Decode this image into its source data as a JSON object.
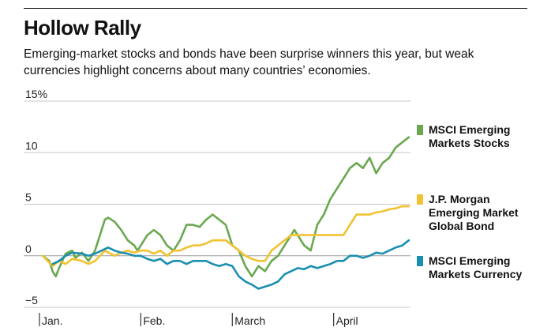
{
  "title": "Hollow Rally",
  "subtitle": "Emerging-market stocks and bonds have been surprise winners this year, but weak currencies highlight concerns about many countries’ economies.",
  "chart_data": {
    "type": "line",
    "title": "Hollow Rally",
    "xlabel": "",
    "ylabel": "",
    "ylim": [
      -5,
      15
    ],
    "y_ticks": [
      {
        "value": 15,
        "label": "15%"
      },
      {
        "value": 10,
        "label": "10"
      },
      {
        "value": 5,
        "label": "5"
      },
      {
        "value": 0,
        "label": "0"
      },
      {
        "value": -5,
        "label": "−5"
      }
    ],
    "x_range": [
      0,
      114
    ],
    "x_ticks": [
      {
        "value": 0,
        "label": "Jan."
      },
      {
        "value": 31,
        "label": "Feb."
      },
      {
        "value": 59,
        "label": "March"
      },
      {
        "value": 90,
        "label": "April"
      }
    ],
    "grid": true,
    "series": [
      {
        "name": "MSCI Emerging Markets Stocks",
        "legend_lines": [
          "MSCI Emerging",
          "Markets Stocks"
        ],
        "color": "#6aa84f",
        "x": [
          1,
          3,
          4,
          5,
          6,
          8,
          10,
          11,
          13,
          15,
          17,
          19,
          20,
          21,
          23,
          25,
          27,
          29,
          30,
          31,
          33,
          35,
          37,
          39,
          41,
          43,
          45,
          47,
          49,
          51,
          53,
          55,
          57,
          59,
          61,
          63,
          65,
          67,
          69,
          71,
          73,
          75,
          77,
          78,
          79,
          80,
          81,
          83,
          85,
          87,
          89,
          91,
          93,
          95,
          97,
          99,
          101,
          103,
          105,
          107,
          109,
          111,
          113
        ],
        "y": [
          0,
          -0.5,
          -1.5,
          -2,
          -1.2,
          0.2,
          0.5,
          -0.2,
          0.3,
          -0.5,
          0.5,
          2.5,
          3.5,
          3.7,
          3.3,
          2.5,
          1.5,
          1.0,
          0.5,
          1.0,
          2.0,
          2.5,
          2.0,
          1.0,
          0.5,
          1.5,
          3.0,
          3.0,
          2.8,
          3.5,
          4.0,
          3.5,
          3.0,
          1.0,
          0.5,
          -1.0,
          -2.0,
          -1.0,
          -1.5,
          -0.5,
          0,
          1.0,
          2.0,
          2.5,
          2.0,
          1.5,
          1.0,
          0.5,
          3.0,
          4.0,
          5.5,
          6.5,
          7.5,
          8.5,
          9.0,
          8.5,
          9.5,
          8.0,
          9.0,
          9.5,
          10.5,
          11.0,
          11.5
        ]
      },
      {
        "name": "J.P. Morgan Emerging Market Global Bond",
        "legend_lines": [
          "J.P. Morgan",
          "Emerging Market",
          "Global Bond"
        ],
        "color": "#f1c232",
        "x": [
          1,
          4,
          6,
          8,
          10,
          13,
          15,
          17,
          20,
          23,
          25,
          27,
          29,
          31,
          33,
          35,
          37,
          39,
          41,
          43,
          45,
          47,
          49,
          51,
          53,
          55,
          57,
          59,
          61,
          63,
          65,
          67,
          69,
          71,
          73,
          75,
          77,
          79,
          81,
          83,
          85,
          87,
          89,
          91,
          93,
          95,
          97,
          99,
          101,
          103,
          105,
          107,
          109,
          111,
          113
        ],
        "y": [
          0,
          -1.0,
          -0.5,
          -0.8,
          -0.3,
          -0.5,
          -0.8,
          -0.5,
          0.5,
          0,
          0.3,
          0.5,
          0.3,
          0.5,
          0.5,
          0.2,
          0.5,
          0,
          0.5,
          0.5,
          0.8,
          1.0,
          1.0,
          1.2,
          1.5,
          1.5,
          1.5,
          1.0,
          0.5,
          0,
          -0.3,
          -0.5,
          -0.5,
          0.5,
          1.0,
          1.5,
          2.0,
          2.0,
          2.0,
          2.0,
          2.0,
          2.0,
          2.0,
          2.0,
          2.0,
          3.0,
          4.0,
          4.0,
          4.0,
          4.2,
          4.3,
          4.5,
          4.6,
          4.8,
          4.8
        ]
      },
      {
        "name": "MSCI Emerging Markets Currency",
        "legend_lines": [
          "MSCI Emerging",
          "Markets Currency"
        ],
        "color": "#1a8fb0",
        "x": [
          4,
          6,
          8,
          10,
          13,
          15,
          17,
          19,
          21,
          23,
          25,
          27,
          29,
          31,
          33,
          35,
          37,
          39,
          41,
          43,
          45,
          47,
          49,
          51,
          53,
          55,
          57,
          59,
          61,
          63,
          65,
          67,
          69,
          71,
          73,
          75,
          77,
          79,
          81,
          83,
          85,
          87,
          89,
          91,
          93,
          95,
          97,
          99,
          101,
          103,
          105,
          107,
          109,
          111,
          113
        ],
        "y": [
          -0.8,
          -0.5,
          0,
          0.3,
          0.2,
          0,
          0.2,
          0.5,
          0.8,
          0.5,
          0.3,
          0.2,
          0,
          0,
          -0.3,
          -0.5,
          -0.3,
          -0.8,
          -0.5,
          -0.5,
          -0.8,
          -0.5,
          -0.5,
          -0.5,
          -0.8,
          -1.0,
          -0.8,
          -1.0,
          -2.0,
          -2.5,
          -2.8,
          -3.2,
          -3.0,
          -2.8,
          -2.5,
          -1.8,
          -1.5,
          -1.2,
          -1.3,
          -1.0,
          -1.2,
          -1.0,
          -0.8,
          -0.5,
          -0.5,
          0,
          0,
          -0.2,
          0,
          0.3,
          0.2,
          0.5,
          0.8,
          1.0,
          1.5
        ]
      }
    ]
  }
}
